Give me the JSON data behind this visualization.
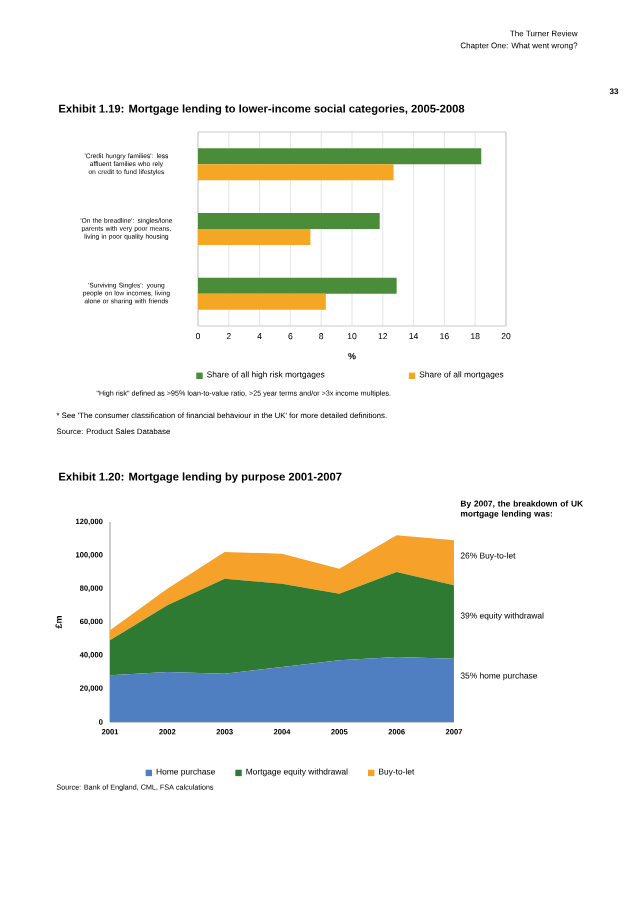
{
  "chart_data": [
    {
      "type": "bar",
      "orientation": "horizontal",
      "title": "Exhibit 1.19: Mortgage lending to lower-income social categories, 2005-2008",
      "xlabel": "%",
      "categories": [
        "'Credit hungry families': less affluent families who rely on credit to fund lifestyles",
        "'On the breadline': singles/lone parents with very poor means, living in poor quality housing",
        "'Surviving Singles': young people on low incomes, living alone or sharing with friends"
      ],
      "series": [
        {
          "name": "Share of all high risk mortgages",
          "color": "#4a8c3a",
          "values": [
            18.4,
            11.8,
            12.9
          ]
        },
        {
          "name": "Share of all mortgages",
          "color": "#f5a623",
          "values": [
            12.7,
            7.3,
            8.3
          ]
        }
      ],
      "xlim": [
        0,
        20
      ],
      "xticks": [
        0,
        2,
        4,
        6,
        8,
        10,
        12,
        14,
        16,
        18,
        20
      ],
      "grid": "x",
      "legend": "bottom",
      "annotations": [
        "The Turner Review",
        "Chapter One: What went wrong?",
        "33",
        "\"High risk\" defined as >95% loan-to-value ratio, >25 year terms and/or >3x income multiples.",
        "* See 'The consumer classification of financial behaviour in the UK' for more detailed definitions.",
        "Source: Product Sales Database"
      ]
    },
    {
      "type": "area",
      "stacked": true,
      "title": "Exhibit 1.20: Mortgage lending by purpose 2001-2007",
      "ylabel": "£m",
      "categories": [
        "2001",
        "2002",
        "2003",
        "2004",
        "2005",
        "2006",
        "2007"
      ],
      "series": [
        {
          "name": "Home purchase",
          "color": "#4f7ec1",
          "values": [
            28000,
            30000,
            29000,
            33000,
            37000,
            39000,
            38000
          ]
        },
        {
          "name": "Mortgage equity withdrawal",
          "color": "#2f7a32",
          "values": [
            21000,
            40000,
            57000,
            50000,
            40000,
            51000,
            44000
          ]
        },
        {
          "name": "Buy-to-let",
          "color": "#f5a12a",
          "values": [
            6000,
            10000,
            16000,
            18000,
            15000,
            22000,
            27000
          ]
        }
      ],
      "ylim": [
        0,
        120000
      ],
      "yticks": [
        0,
        {
          "value": 20000,
          "label": "20,000"
        },
        {
          "value": 40000,
          "label": "40,000"
        },
        {
          "value": 60000,
          "label": "60,000"
        },
        {
          "value": 80000,
          "label": "80,000"
        },
        {
          "value": 100000,
          "label": "100,000"
        },
        {
          "value": 120000,
          "label": "120,000"
        }
      ],
      "legend": "bottom",
      "annotations": [
        "By 2007, the breakdown of UK mortgage lending was:",
        "26% Buy-to-let",
        "39% equity withdrawal",
        "35% home purchase",
        "Source: Bank of England, CML, FSA calculations"
      ]
    }
  ]
}
